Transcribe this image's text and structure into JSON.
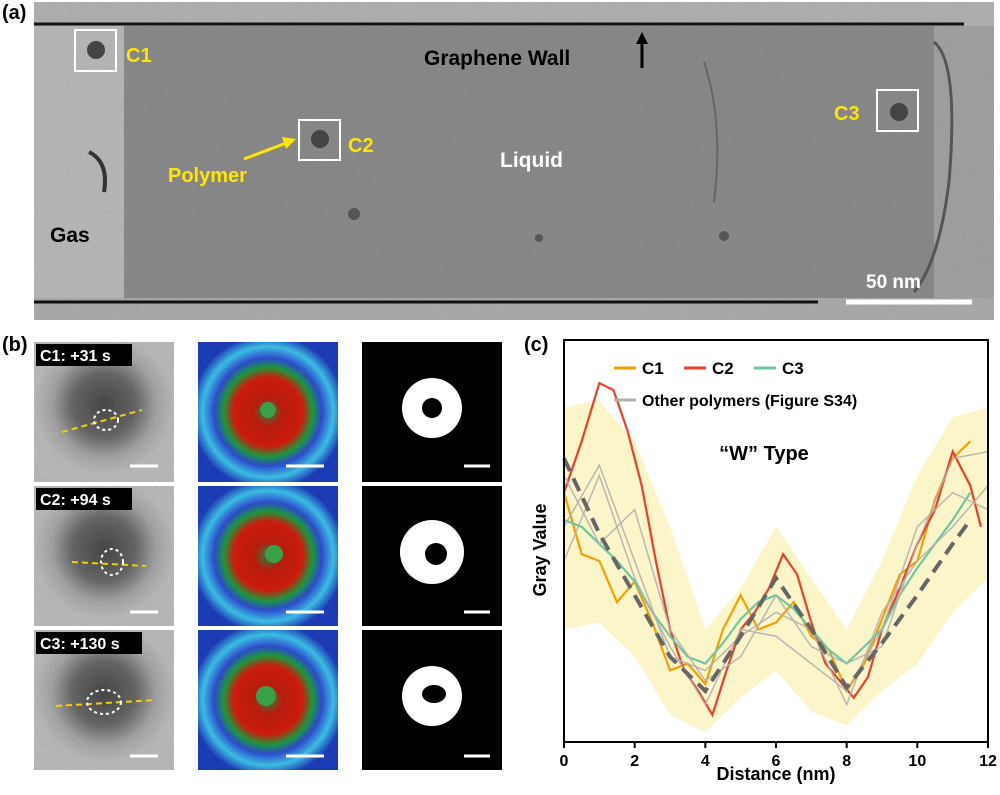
{
  "figure": {
    "panel_a_label": "(a)",
    "panel_b_label": "(b)",
    "panel_c_label": "(c)"
  },
  "panel_a": {
    "graphene_wall": "Graphene Wall",
    "liquid": "Liquid",
    "gas": "Gas",
    "polymer": "Polymer",
    "c1": "C1",
    "c2": "C2",
    "c3": "C3",
    "scale_bar": "50 nm",
    "accent": "#ffe600"
  },
  "panel_b": {
    "rows": [
      {
        "label": "C1: +31 s"
      },
      {
        "label": "C2: +94 s"
      },
      {
        "label": "C3: +130 s"
      }
    ]
  },
  "chart_data": {
    "type": "line",
    "title": "",
    "annotation": "“W” Type",
    "xlabel": "Distance (nm)",
    "ylabel": "Gray Value",
    "xlim": [
      0,
      12
    ],
    "xticks": [
      "0",
      "2",
      "4",
      "6",
      "8",
      "10",
      "12"
    ],
    "legend": [
      "C1",
      "C2",
      "C3",
      "Other polymers (Figure S34)"
    ],
    "legend_placement": "top",
    "colors": {
      "C1": "#f5a000",
      "C2": "#e8402a",
      "C3": "#6dc7a0",
      "other": "#b0b0b0",
      "trend": "#666666",
      "band": "#fbf3c0"
    },
    "series": [
      {
        "name": "C1",
        "x": [
          0,
          0.5,
          1,
          1.5,
          2,
          2.5,
          3,
          3.5,
          4,
          4.5,
          5,
          5.5,
          6,
          6.5,
          7,
          7.5,
          8,
          8.5,
          9,
          9.5,
          10,
          10.5,
          11,
          11.5
        ],
        "y": [
          0.7,
          0.52,
          0.5,
          0.38,
          0.44,
          0.32,
          0.18,
          0.2,
          0.14,
          0.3,
          0.4,
          0.3,
          0.32,
          0.38,
          0.28,
          0.24,
          0.12,
          0.2,
          0.33,
          0.46,
          0.5,
          0.68,
          0.8,
          0.85
        ]
      },
      {
        "name": "C2",
        "x": [
          0,
          0.5,
          1,
          1.4,
          1.8,
          2.2,
          2.6,
          3,
          3.4,
          3.8,
          4.2,
          4.6,
          5,
          5.4,
          5.8,
          6.2,
          6.6,
          7,
          7.4,
          7.8,
          8.2,
          8.6,
          9,
          9.5,
          10,
          10.5,
          11,
          11.5,
          11.8
        ],
        "y": [
          0.7,
          0.85,
          1.02,
          1.0,
          0.88,
          0.72,
          0.5,
          0.3,
          0.18,
          0.12,
          0.05,
          0.18,
          0.3,
          0.35,
          0.42,
          0.52,
          0.46,
          0.32,
          0.2,
          0.15,
          0.1,
          0.16,
          0.3,
          0.42,
          0.55,
          0.65,
          0.82,
          0.72,
          0.6
        ]
      },
      {
        "name": "C3",
        "x": [
          0,
          0.5,
          1,
          1.5,
          2,
          2.5,
          3,
          3.5,
          4,
          4.5,
          5,
          5.5,
          6,
          6.5,
          7,
          7.5,
          8,
          8.5,
          9,
          9.5,
          10,
          10.5,
          11,
          11.5
        ],
        "y": [
          0.62,
          0.6,
          0.55,
          0.5,
          0.44,
          0.35,
          0.28,
          0.22,
          0.2,
          0.26,
          0.33,
          0.38,
          0.4,
          0.36,
          0.3,
          0.24,
          0.2,
          0.25,
          0.3,
          0.4,
          0.48,
          0.55,
          0.62,
          0.7
        ]
      },
      {
        "name": "Other polymers (Figure S34)",
        "x": [
          0,
          1,
          2,
          3,
          4,
          5,
          6,
          7,
          8,
          9,
          10,
          11,
          12
        ],
        "y": [
          0.5,
          0.75,
          0.45,
          0.25,
          0.08,
          0.3,
          0.28,
          0.2,
          0.12,
          0.3,
          0.6,
          0.7,
          0.65
        ]
      },
      {
        "name": "Other polymers (Figure S34)",
        "x": [
          0,
          1,
          2,
          3,
          4,
          5,
          6,
          7,
          8,
          9,
          10,
          11,
          12
        ],
        "y": [
          0.75,
          0.55,
          0.65,
          0.3,
          0.15,
          0.22,
          0.4,
          0.25,
          0.2,
          0.25,
          0.55,
          0.8,
          0.82
        ]
      },
      {
        "name": "Other polymers (Figure S34)",
        "x": [
          0,
          1,
          2,
          3,
          4,
          5,
          6,
          7,
          8,
          9,
          10,
          11,
          12
        ],
        "y": [
          0.6,
          0.78,
          0.5,
          0.22,
          0.18,
          0.28,
          0.35,
          0.3,
          0.08,
          0.35,
          0.5,
          0.6,
          0.72
        ]
      }
    ],
    "trend": {
      "x": [
        0,
        1,
        2,
        3,
        4,
        5,
        6,
        7,
        8,
        9,
        10,
        11,
        11.5
      ],
      "y": [
        0.8,
        0.58,
        0.4,
        0.22,
        0.12,
        0.28,
        0.45,
        0.3,
        0.13,
        0.26,
        0.4,
        0.55,
        0.62
      ]
    },
    "band": {
      "x": [
        0,
        1,
        2,
        3,
        4,
        5,
        6,
        7,
        8,
        9,
        10,
        11,
        12
      ],
      "upper": [
        0.95,
        0.97,
        0.85,
        0.6,
        0.3,
        0.42,
        0.6,
        0.45,
        0.3,
        0.5,
        0.75,
        0.92,
        0.95
      ],
      "lower": [
        0.3,
        0.32,
        0.22,
        0.05,
        0.0,
        0.1,
        0.18,
        0.06,
        0.02,
        0.12,
        0.2,
        0.35,
        0.45
      ]
    }
  }
}
